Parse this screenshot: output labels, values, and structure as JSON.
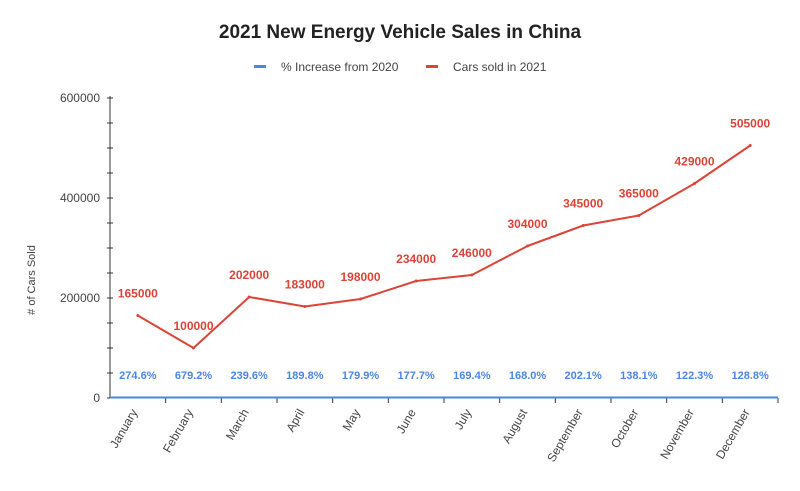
{
  "chart_data": {
    "type": "line",
    "title": "2021 New Energy Vehicle Sales in China",
    "ylabel": "# of Cars Sold",
    "xlabel": "",
    "categories": [
      "January",
      "February",
      "March",
      "April",
      "May",
      "June",
      "July",
      "August",
      "September",
      "October",
      "November",
      "December"
    ],
    "ylim": [
      0,
      600000
    ],
    "yticks": [
      "0",
      "200000",
      "400000",
      "600000"
    ],
    "legend_position": "top",
    "grid": false,
    "series": [
      {
        "name": "% Increase from 2020",
        "color": "#4a86e8",
        "values": [
          274.6,
          679.2,
          239.6,
          189.8,
          179.9,
          177.7,
          169.4,
          168.0,
          202.1,
          138.1,
          122.3,
          128.8
        ],
        "labels": [
          "274.6%",
          "679.2%",
          "239.6%",
          "189.8%",
          "179.9%",
          "177.7%",
          "169.4%",
          "168.0%",
          "202.1%",
          "138.1%",
          "122.3%",
          "128.8%"
        ]
      },
      {
        "name": "Cars sold in 2021",
        "color": "#db4437",
        "values": [
          165000,
          100000,
          202000,
          183000,
          198000,
          234000,
          246000,
          304000,
          345000,
          365000,
          429000,
          505000
        ],
        "labels": [
          "165000",
          "100000",
          "202000",
          "183000",
          "198000",
          "234000",
          "246000",
          "304000",
          "345000",
          "365000",
          "429000",
          "505000"
        ]
      }
    ]
  }
}
